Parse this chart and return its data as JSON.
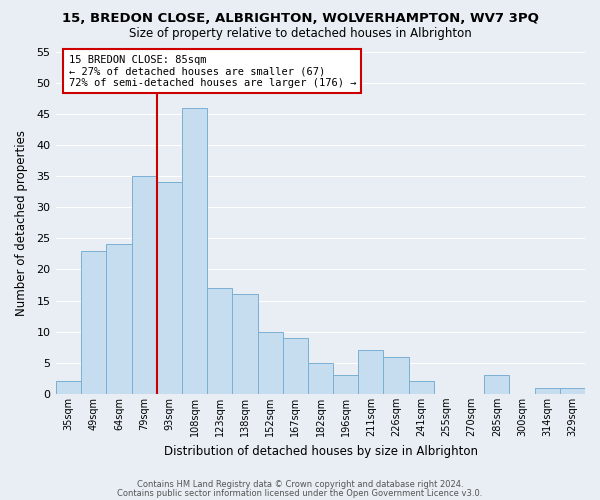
{
  "title": "15, BREDON CLOSE, ALBRIGHTON, WOLVERHAMPTON, WV7 3PQ",
  "subtitle": "Size of property relative to detached houses in Albrighton",
  "xlabel": "Distribution of detached houses by size in Albrighton",
  "ylabel": "Number of detached properties",
  "categories": [
    "35sqm",
    "49sqm",
    "64sqm",
    "79sqm",
    "93sqm",
    "108sqm",
    "123sqm",
    "138sqm",
    "152sqm",
    "167sqm",
    "182sqm",
    "196sqm",
    "211sqm",
    "226sqm",
    "241sqm",
    "255sqm",
    "270sqm",
    "285sqm",
    "300sqm",
    "314sqm",
    "329sqm"
  ],
  "values": [
    2,
    23,
    24,
    35,
    34,
    46,
    17,
    16,
    10,
    9,
    5,
    3,
    7,
    6,
    2,
    0,
    0,
    3,
    0,
    1,
    1
  ],
  "bar_color": "#c6ddef",
  "bar_edge_color": "#7ab0d4",
  "property_line_color": "#cc0000",
  "annotation_title": "15 BREDON CLOSE: 85sqm",
  "annotation_line1": "← 27% of detached houses are smaller (67)",
  "annotation_line2": "72% of semi-detached houses are larger (176) →",
  "annotation_box_edge": "#cc0000",
  "annotation_box_facecolor": "#ffffff",
  "ylim": [
    0,
    55
  ],
  "yticks": [
    0,
    5,
    10,
    15,
    20,
    25,
    30,
    35,
    40,
    45,
    50,
    55
  ],
  "footer1": "Contains HM Land Registry data © Crown copyright and database right 2024.",
  "footer2": "Contains public sector information licensed under the Open Government Licence v3.0.",
  "background_color": "#e8eef4",
  "grid_color": "#ffffff"
}
